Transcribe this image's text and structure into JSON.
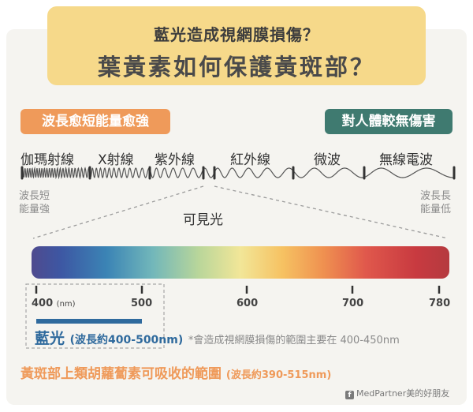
{
  "title": {
    "line1": "藍光造成視網膜損傷？",
    "line2": "葉黃素如何保護黃斑部？"
  },
  "tags": {
    "left": "波長愈短能量愈強",
    "right": "對人體較無傷害"
  },
  "bands": [
    "伽瑪射線",
    "X射線",
    "紫外線",
    "紅外線",
    "微波",
    "無線電波"
  ],
  "side_labels": {
    "left_line1": "波長短",
    "left_line2": "能量強",
    "right_line1": "波長長",
    "right_line2": "能量低"
  },
  "visible_label": "可見光",
  "ticks": {
    "t400": "400",
    "t400_unit": "(nm)",
    "t500": "500",
    "t600": "600",
    "t700": "700",
    "t780": "780"
  },
  "blue_light": {
    "name": "藍光",
    "range": "(波長約400-500nm)",
    "note": "*會造成視網膜損傷的範圍主要在 400-450nm"
  },
  "macula": {
    "text": "黃斑部上類胡蘿蔔素可吸收的範圍",
    "range": "(波長約390-515nm)"
  },
  "credit": "MedPartner美的好朋友",
  "colors": {
    "title_bg": "#f6d98a",
    "orange": "#ef9a5a",
    "teal": "#3f7a70",
    "blue": "#2f6a9d",
    "card_bg": "#f5f4f0"
  }
}
